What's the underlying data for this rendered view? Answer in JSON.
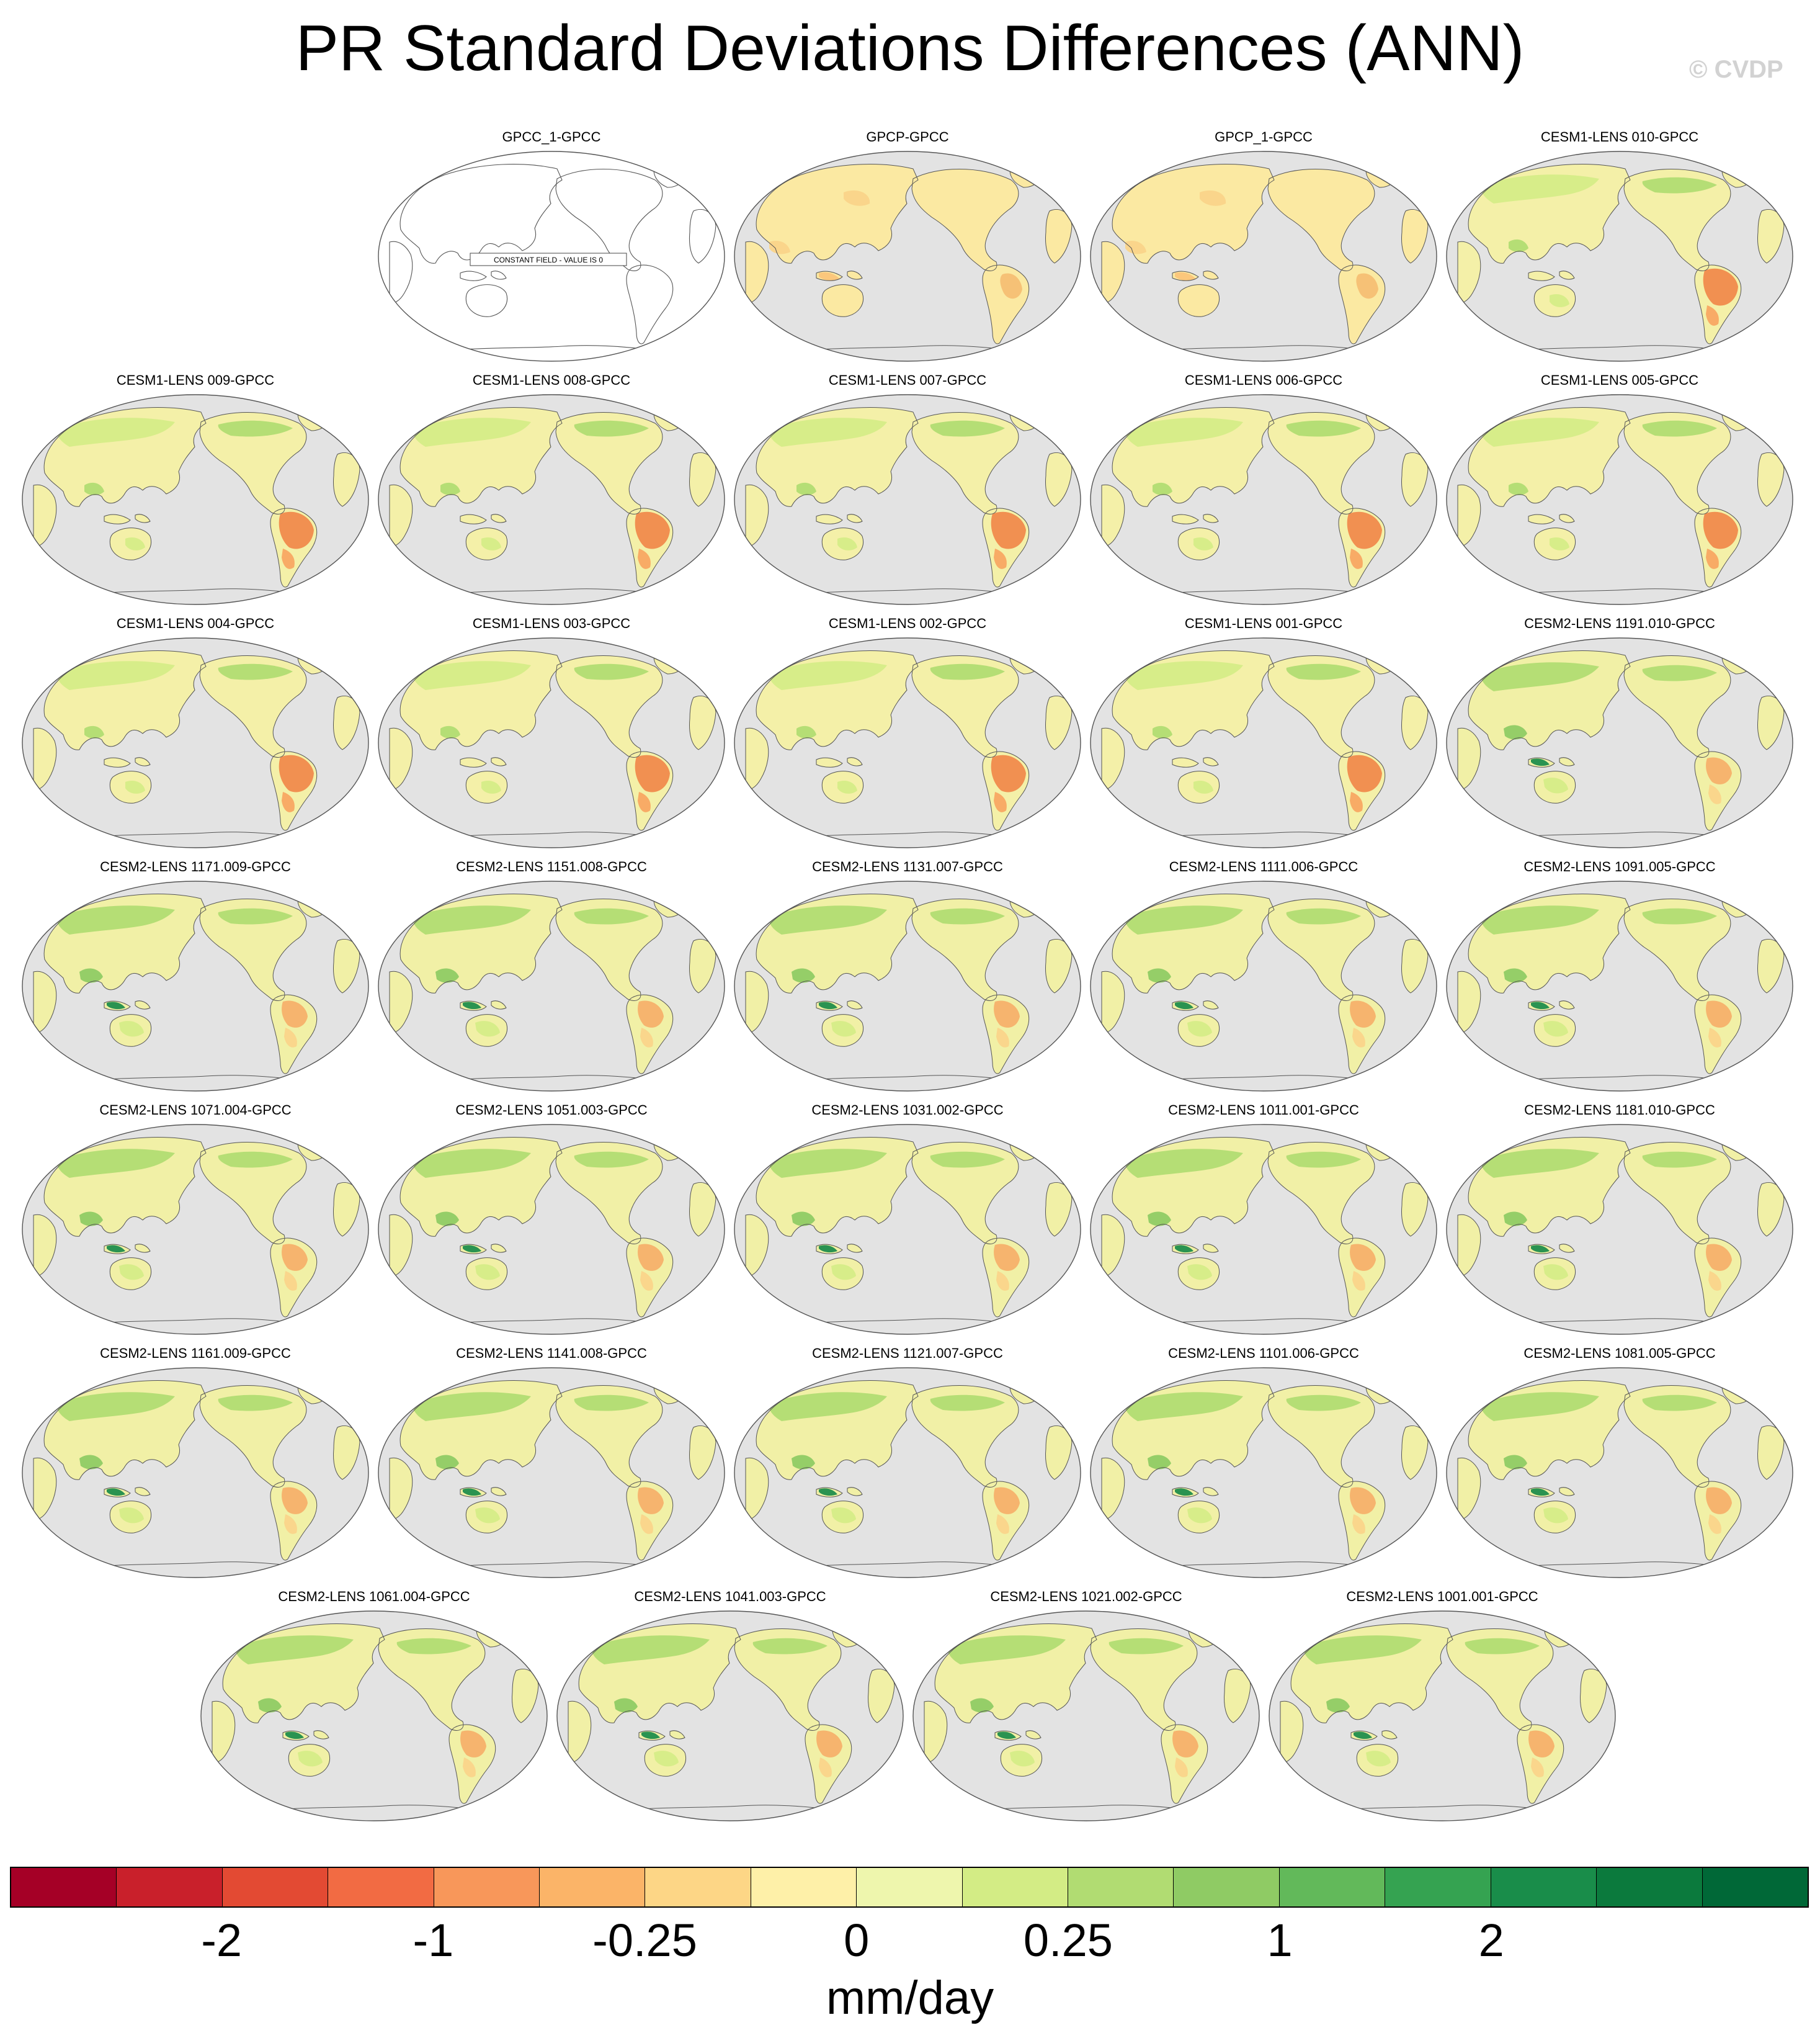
{
  "title": "PR Standard Deviations Differences (ANN)",
  "credit": "© CVDP",
  "units": "mm/day",
  "colorbar": {
    "colors": [
      "#a50026",
      "#c9202b",
      "#e34a33",
      "#f26b43",
      "#f8975a",
      "#fbb468",
      "#fdd686",
      "#fef0a8",
      "#eef6ad",
      "#d3ec85",
      "#b1dc72",
      "#8fcb64",
      "#62b95a",
      "#35a351",
      "#198d4a",
      "#0b7a3d",
      "#006837"
    ],
    "tick_labels": [
      "-2",
      "-1",
      "-0.25",
      "0",
      "0.25",
      "1",
      "2"
    ]
  },
  "panels": [
    {
      "title": "GPCC_1-GPCC",
      "constant_field": true,
      "constant_label": "CONSTANT FIELD - VALUE IS 0"
    },
    {
      "title": "GPCP-GPCC",
      "style": "gpcp"
    },
    {
      "title": "GPCP_1-GPCC",
      "style": "gpcp"
    },
    {
      "title": "CESM1-LENS 010-GPCC",
      "style": "cesm1"
    },
    {
      "title": "CESM1-LENS 009-GPCC",
      "style": "cesm1"
    },
    {
      "title": "CESM1-LENS 008-GPCC",
      "style": "cesm1"
    },
    {
      "title": "CESM1-LENS 007-GPCC",
      "style": "cesm1"
    },
    {
      "title": "CESM1-LENS 006-GPCC",
      "style": "cesm1"
    },
    {
      "title": "CESM1-LENS 005-GPCC",
      "style": "cesm1"
    },
    {
      "title": "CESM1-LENS 004-GPCC",
      "style": "cesm1"
    },
    {
      "title": "CESM1-LENS 003-GPCC",
      "style": "cesm1"
    },
    {
      "title": "CESM1-LENS 002-GPCC",
      "style": "cesm1"
    },
    {
      "title": "CESM1-LENS 001-GPCC",
      "style": "cesm1"
    },
    {
      "title": "CESM2-LENS 1191.010-GPCC",
      "style": "cesm2"
    },
    {
      "title": "CESM2-LENS 1171.009-GPCC",
      "style": "cesm2"
    },
    {
      "title": "CESM2-LENS 1151.008-GPCC",
      "style": "cesm2"
    },
    {
      "title": "CESM2-LENS 1131.007-GPCC",
      "style": "cesm2"
    },
    {
      "title": "CESM2-LENS 1111.006-GPCC",
      "style": "cesm2"
    },
    {
      "title": "CESM2-LENS 1091.005-GPCC",
      "style": "cesm2"
    },
    {
      "title": "CESM2-LENS 1071.004-GPCC",
      "style": "cesm2"
    },
    {
      "title": "CESM2-LENS 1051.003-GPCC",
      "style": "cesm2"
    },
    {
      "title": "CESM2-LENS 1031.002-GPCC",
      "style": "cesm2"
    },
    {
      "title": "CESM2-LENS 1011.001-GPCC",
      "style": "cesm2"
    },
    {
      "title": "CESM2-LENS 1181.010-GPCC",
      "style": "cesm2"
    },
    {
      "title": "CESM2-LENS 1161.009-GPCC",
      "style": "cesm2"
    },
    {
      "title": "CESM2-LENS 1141.008-GPCC",
      "style": "cesm2"
    },
    {
      "title": "CESM2-LENS 1121.007-GPCC",
      "style": "cesm2"
    },
    {
      "title": "CESM2-LENS 1101.006-GPCC",
      "style": "cesm2"
    },
    {
      "title": "CESM2-LENS 1081.005-GPCC",
      "style": "cesm2"
    },
    {
      "title": "CESM2-LENS 1061.004-GPCC",
      "style": "cesm2"
    },
    {
      "title": "CESM2-LENS 1041.003-GPCC",
      "style": "cesm2"
    },
    {
      "title": "CESM2-LENS 1021.002-GPCC",
      "style": "cesm2"
    },
    {
      "title": "CESM2-LENS 1001.001-GPCC",
      "style": "cesm2"
    }
  ]
}
